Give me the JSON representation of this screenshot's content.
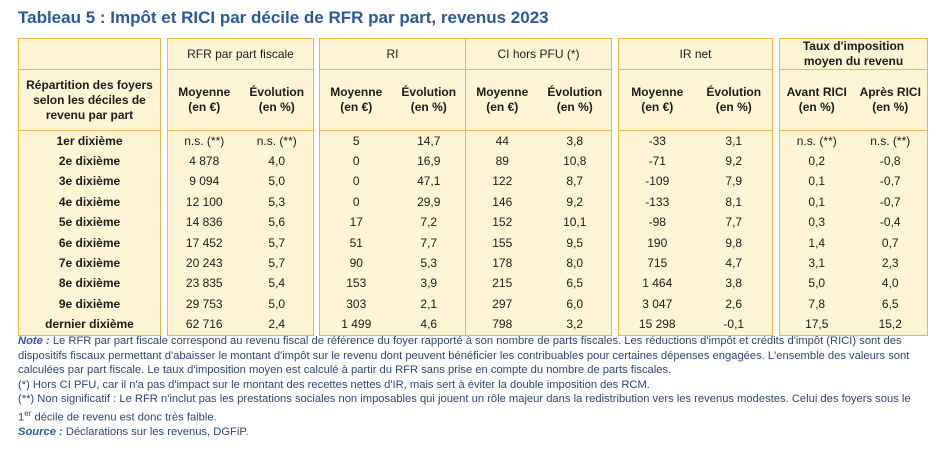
{
  "title": "Tableau 5 : Impôt et RICI par décile de RFR par part, revenus 2023",
  "table": {
    "row_header": [
      "Répartition des foyers",
      "selon les déciles de",
      "revenu par part"
    ],
    "groups": [
      {
        "label": [
          "RFR par part fiscale"
        ],
        "columns": [
          [
            "Moyenne",
            "(en €)"
          ],
          [
            "Évolution",
            "(en %)"
          ]
        ]
      },
      {
        "label": [
          "RI"
        ],
        "columns": [
          [
            "Moyenne",
            "(en €)"
          ],
          [
            "Évolution",
            "(en %)"
          ]
        ]
      },
      {
        "label": [
          "CI hors PFU (*)"
        ],
        "columns": [
          [
            "Moyenne",
            "(en €)"
          ],
          [
            "Évolution",
            "(en %)"
          ]
        ]
      },
      {
        "label": [
          "IR net"
        ],
        "columns": [
          [
            "Moyenne",
            "(en €)"
          ],
          [
            "Évolution",
            "(en %)"
          ]
        ]
      },
      {
        "label": [
          "Taux d'imposition",
          "moyen du revenu"
        ],
        "columns": [
          [
            "Avant RICI",
            "(en %)"
          ],
          [
            "Après RICI",
            "(en %)"
          ]
        ]
      }
    ],
    "rows": [
      {
        "label": "1er dixième",
        "cells": [
          "n.s. (**)",
          "n.s. (**)",
          "5",
          "14,7",
          "44",
          "3,8",
          "-33",
          "3,1",
          "n.s. (**)",
          "n.s. (**)"
        ]
      },
      {
        "label": "2e dixième",
        "cells": [
          "4 878",
          "4,0",
          "0",
          "16,9",
          "89",
          "10,8",
          "-71",
          "9,2",
          "0,2",
          "-0,8"
        ]
      },
      {
        "label": "3e dixième",
        "cells": [
          "9 094",
          "5,0",
          "0",
          "47,1",
          "122",
          "8,7",
          "-109",
          "7,9",
          "0,1",
          "-0,7"
        ]
      },
      {
        "label": "4e dixième",
        "cells": [
          "12 100",
          "5,3",
          "0",
          "29,9",
          "146",
          "9,2",
          "-133",
          "8,1",
          "0,1",
          "-0,7"
        ]
      },
      {
        "label": "5e dixième",
        "cells": [
          "14 836",
          "5,6",
          "17",
          "7,2",
          "152",
          "10,1",
          "-98",
          "7,7",
          "0,3",
          "-0,4"
        ]
      },
      {
        "label": "6e dixième",
        "cells": [
          "17 452",
          "5,7",
          "51",
          "7,7",
          "155",
          "9,5",
          "190",
          "9,8",
          "1,4",
          "0,7"
        ]
      },
      {
        "label": "7e dixième",
        "cells": [
          "20 243",
          "5,7",
          "90",
          "5,3",
          "178",
          "8,0",
          "715",
          "4,7",
          "3,1",
          "2,3"
        ]
      },
      {
        "label": "8e dixième",
        "cells": [
          "23 835",
          "5,4",
          "153",
          "3,9",
          "215",
          "6,5",
          "1 464",
          "3,8",
          "5,0",
          "4,0"
        ]
      },
      {
        "label": "9e dixième",
        "cells": [
          "29 753",
          "5,0",
          "303",
          "2,1",
          "297",
          "6,0",
          "3 047",
          "2,6",
          "7,8",
          "6,5"
        ]
      },
      {
        "label": "dernier dixième",
        "cells": [
          "62 716",
          "2,4",
          "1 499",
          "4,6",
          "798",
          "3,2",
          "15 298",
          "-0,1",
          "17,5",
          "15,2"
        ]
      }
    ]
  },
  "notes": {
    "note_label": "Note :",
    "note_text": "Le RFR par part fiscale correspond au revenu fiscal de référence du foyer rapporté à son nombre de parts fiscales. Les réductions d'impôt et crédits d'impôt (RICI) sont des dispositifs fiscaux permettant d'abaisser le montant d'impôt sur le revenu dont peuvent bénéficier les contribuables pour certaines dépenses engagées. L'ensemble des valeurs sont calculées par part fiscale. Le taux d'imposition moyen est calculé à partir du RFR sans prise en compte du nombre de parts fiscales.",
    "star1": "(*) Hors CI PFU, car il n'a pas d'impact sur le montant des recettes nettes d'IR, mais sert à éviter la double imposition des RCM.",
    "star2_before": "(**) Non significatif : Le RFR n'inclut pas les prestations sociales non imposables qui jouent un rôle majeur dans la redistribution vers les revenus modestes. Celui des foyers sous le 1",
    "star2_sup": "er",
    "star2_after": " décile de revenu est donc très faible.",
    "source_label": "Source :",
    "source_text": "Déclarations sur les revenus, DGFiP."
  }
}
